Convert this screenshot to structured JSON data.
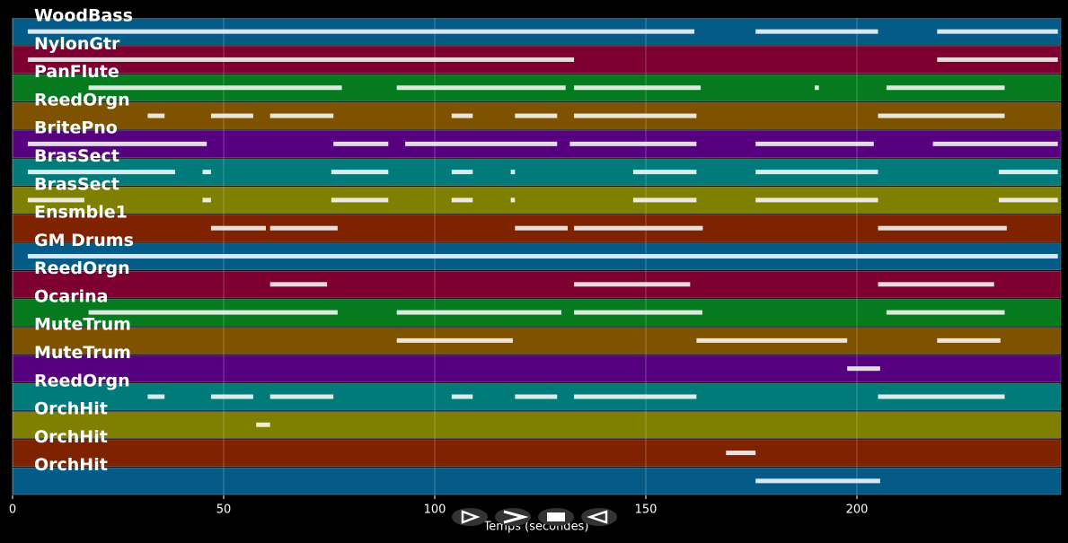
{
  "chart_data": {
    "type": "piano-roll",
    "x_label": "Temps (secondes)",
    "xlim": [
      0,
      248.3
    ],
    "xticks": [
      0,
      50,
      100,
      150,
      200
    ],
    "grid": true,
    "tracks": [
      {
        "name": "WoodBass",
        "color": "#045b87",
        "notes": [
          [
            3.6,
            161.5
          ],
          [
            176,
            205
          ],
          [
            219,
            247.6
          ]
        ]
      },
      {
        "name": "NylonGtr",
        "color": "#7d0030",
        "notes": [
          [
            3.6,
            133
          ],
          [
            219,
            247.6
          ]
        ]
      },
      {
        "name": "PanFlute",
        "color": "#067a1e",
        "notes": [
          [
            18,
            78
          ],
          [
            91,
            131
          ],
          [
            133,
            163
          ],
          [
            190,
            191
          ],
          [
            207,
            235
          ]
        ]
      },
      {
        "name": "ReedOrgn",
        "color": "#7f5200",
        "notes": [
          [
            32,
            36
          ],
          [
            47,
            57
          ],
          [
            61,
            76
          ],
          [
            104,
            109
          ],
          [
            119,
            129
          ],
          [
            133,
            162
          ],
          [
            205,
            235
          ]
        ]
      },
      {
        "name": "BritePno",
        "color": "#560080",
        "notes": [
          [
            3.6,
            46
          ],
          [
            76,
            89
          ],
          [
            93,
            129
          ],
          [
            132,
            162
          ],
          [
            176,
            204
          ],
          [
            218,
            247.6
          ]
        ]
      },
      {
        "name": "BrasSect",
        "color": "#007a7a",
        "notes": [
          [
            3.6,
            38.5
          ],
          [
            45,
            47
          ],
          [
            75.5,
            89
          ],
          [
            104,
            109
          ],
          [
            118,
            119
          ],
          [
            147,
            162
          ],
          [
            176,
            205
          ],
          [
            233.6,
            247.6
          ]
        ]
      },
      {
        "name": "BrasSect",
        "color": "#7f7f00",
        "notes": [
          [
            3.6,
            17
          ],
          [
            45,
            47
          ],
          [
            75.5,
            89
          ],
          [
            104,
            109
          ],
          [
            118,
            119
          ],
          [
            147,
            162
          ],
          [
            176,
            205
          ],
          [
            233.6,
            247.6
          ]
        ]
      },
      {
        "name": "Ensmble1",
        "color": "#7f2200",
        "notes": [
          [
            47,
            60
          ],
          [
            61,
            77
          ],
          [
            119,
            131.5
          ],
          [
            133,
            163.5
          ],
          [
            205,
            235.5
          ]
        ]
      },
      {
        "name": "GM Drums",
        "color": "#045b87",
        "notes": [
          [
            3.6,
            247.6
          ]
        ]
      },
      {
        "name": "ReedOrgn",
        "color": "#7d0030",
        "notes": [
          [
            61,
            74.5
          ],
          [
            133,
            160.5
          ],
          [
            205,
            232.5
          ]
        ]
      },
      {
        "name": "Ocarina",
        "color": "#067a1e",
        "notes": [
          [
            18,
            77
          ],
          [
            91,
            130
          ],
          [
            133,
            163.4
          ],
          [
            207,
            235
          ]
        ]
      },
      {
        "name": "MuteTrum",
        "color": "#7f5200",
        "notes": [
          [
            91,
            118.5
          ],
          [
            162,
            197.7
          ],
          [
            219,
            234
          ]
        ]
      },
      {
        "name": "MuteTrum",
        "color": "#560080",
        "notes": [
          [
            197.7,
            205.5
          ]
        ]
      },
      {
        "name": "ReedOrgn",
        "color": "#007a7a",
        "notes": [
          [
            32,
            36
          ],
          [
            47,
            57
          ],
          [
            61,
            76
          ],
          [
            104,
            109
          ],
          [
            119,
            129
          ],
          [
            133,
            162
          ],
          [
            205,
            235
          ]
        ]
      },
      {
        "name": "OrchHit",
        "color": "#7f7f00",
        "notes": [
          [
            57.7,
            61
          ]
        ]
      },
      {
        "name": "OrchHit",
        "color": "#7f2200",
        "notes": [
          [
            169,
            176
          ]
        ]
      },
      {
        "name": "OrchHit",
        "color": "#045b87",
        "notes": [
          [
            176,
            205.5
          ]
        ]
      }
    ]
  }
}
